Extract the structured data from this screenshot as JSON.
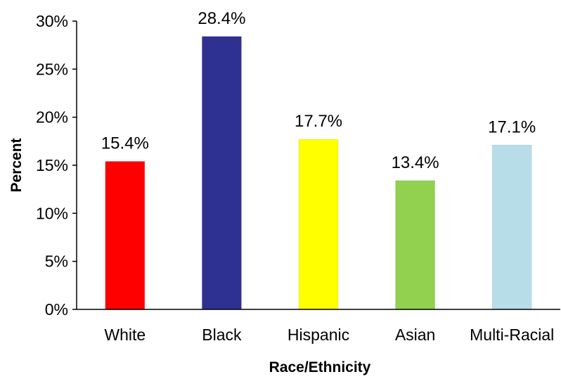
{
  "chart_data": {
    "type": "bar",
    "title": "",
    "xlabel": "Race/Ethnicity",
    "ylabel": "Percent",
    "categories": [
      "White",
      "Black",
      "Hispanic",
      "Asian",
      "Multi-Racial"
    ],
    "values": [
      15.4,
      28.4,
      17.7,
      13.4,
      17.1
    ],
    "value_labels": [
      "15.4%",
      "28.4%",
      "17.7%",
      "13.4%",
      "17.1%"
    ],
    "colors": [
      "#ff0000",
      "#2e3192",
      "#ffff00",
      "#92d050",
      "#b7dde8"
    ],
    "ylim": [
      0,
      30
    ],
    "yticks": [
      0,
      5,
      10,
      15,
      20,
      25,
      30
    ],
    "ytick_labels": [
      "0%",
      "5%",
      "10%",
      "15%",
      "20%",
      "25%",
      "30%"
    ],
    "grid": false,
    "legend": "none"
  }
}
